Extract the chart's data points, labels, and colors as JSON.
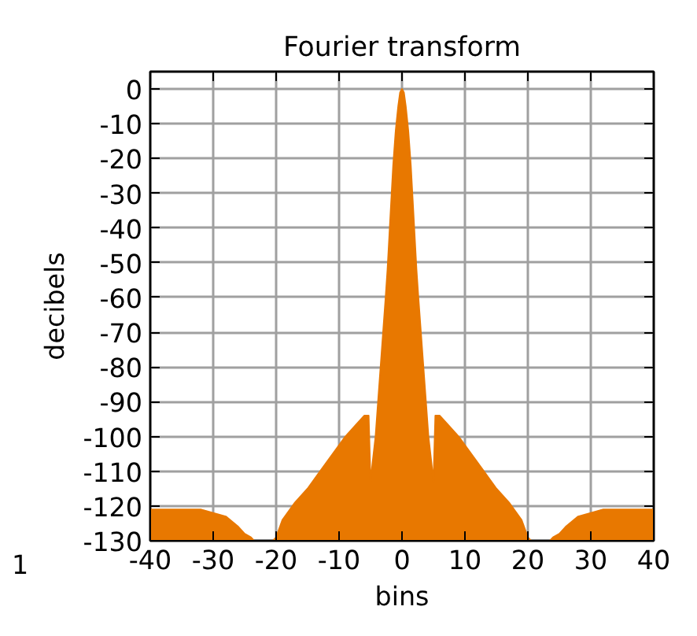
{
  "chart_data": {
    "type": "area",
    "title": "Fourier transform",
    "xlabel": "bins",
    "ylabel": "decibels",
    "annotations": [
      "1"
    ],
    "x": [
      -40,
      -40,
      -38,
      -36,
      -34,
      -32,
      -30,
      -28,
      -26,
      -25,
      -24,
      -23.5,
      -22,
      -20.5,
      -20,
      -19,
      -17,
      -15,
      -13,
      -11,
      -9,
      -7,
      -6,
      -5.3,
      -5,
      -4.7,
      -4.2,
      -3.8,
      -3.4,
      -3,
      -2.6,
      -2.3,
      -2,
      -1.7,
      -1.4,
      -1,
      -0.6,
      -0.3,
      0,
      0.3,
      0.6,
      1,
      1.4,
      1.7,
      2,
      2.3,
      2.6,
      3,
      3.4,
      3.8,
      4.2,
      4.7,
      5,
      5.3,
      6,
      7,
      9,
      11,
      13,
      15,
      17,
      19,
      20,
      20.5,
      22,
      23.5,
      24,
      25,
      26,
      28,
      30,
      32,
      34,
      36,
      38,
      40,
      40
    ],
    "series": [
      {
        "color": "#e87800",
        "values": [
          -130,
          -121,
          -121,
          -121,
          -121,
          -121,
          -122,
          -123,
          -126,
          -128,
          -129,
          -130,
          -130,
          -130,
          -129,
          -124,
          -119,
          -115,
          -110,
          -105,
          -100,
          -96,
          -94,
          -94,
          -113,
          -108,
          -100,
          -90,
          -80,
          -70,
          -60,
          -52,
          -42,
          -32,
          -22,
          -12,
          -5,
          -1,
          0,
          -1,
          -5,
          -12,
          -22,
          -32,
          -42,
          -52,
          -60,
          -70,
          -80,
          -90,
          -100,
          -108,
          -113,
          -94,
          -94,
          -96,
          -100,
          -105,
          -110,
          -115,
          -119,
          -124,
          -129,
          -130,
          -130,
          -130,
          -129,
          -128,
          -126,
          -123,
          -122,
          -121,
          -121,
          -121,
          -121,
          -121,
          -130
        ]
      }
    ],
    "xlim": [
      -40,
      40
    ],
    "ylim": [
      -130,
      5
    ],
    "xticks": [
      -40,
      -30,
      -20,
      -10,
      0,
      10,
      20,
      30,
      40
    ],
    "yticks": [
      0,
      -10,
      -20,
      -30,
      -40,
      -50,
      -60,
      -70,
      -80,
      -90,
      -100,
      -110,
      -120,
      -130
    ],
    "grid": true
  }
}
